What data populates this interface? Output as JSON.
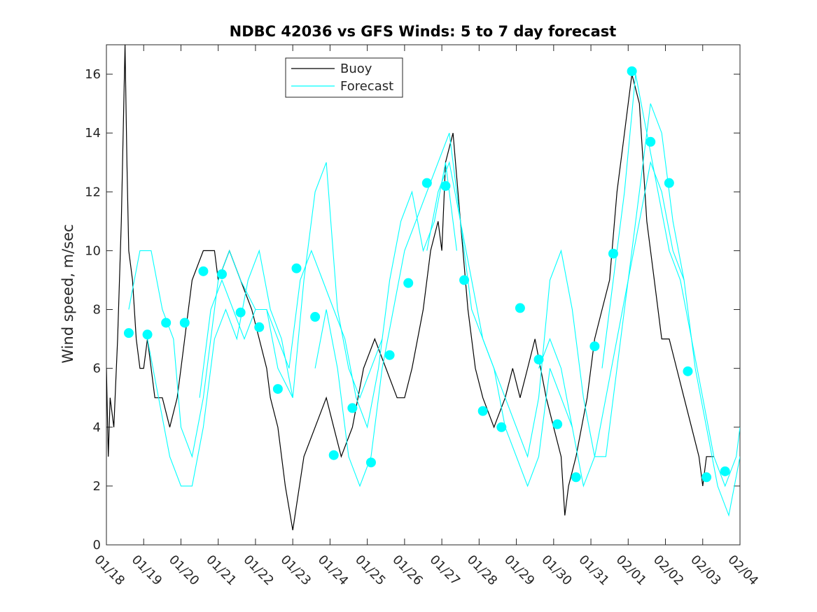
{
  "chart_data": {
    "type": "line",
    "title": "NDBC 42036 vs GFS Winds: 5 to 7 day forecast",
    "xlabel": "",
    "ylabel": "Wind speed, m/sec",
    "xlim": [
      0,
      17
    ],
    "ylim": [
      0,
      17
    ],
    "x_ticks": [
      0,
      1,
      2,
      3,
      4,
      5,
      6,
      7,
      8,
      9,
      10,
      11,
      12,
      13,
      14,
      15,
      16,
      17
    ],
    "x_tick_labels": [
      "01/18",
      "01/19",
      "01/20",
      "01/21",
      "01/22",
      "01/23",
      "01/24",
      "01/25",
      "01/26",
      "01/27",
      "01/28",
      "01/29",
      "01/30",
      "01/31",
      "02/01",
      "02/02",
      "02/03",
      "02/04"
    ],
    "y_ticks": [
      0,
      2,
      4,
      6,
      8,
      10,
      12,
      14,
      16
    ],
    "y_tick_labels": [
      "0",
      "2",
      "4",
      "6",
      "8",
      "10",
      "12",
      "14",
      "16"
    ],
    "legend": {
      "location": "top-center",
      "entries": [
        {
          "label": "Buoy",
          "color": "#000000"
        },
        {
          "label": "Forecast",
          "color": "#00ffff"
        }
      ]
    },
    "colors": {
      "buoy": "#000000",
      "forecast": "#00ffff",
      "markers": "#00ffff"
    },
    "series": [
      {
        "name": "Buoy",
        "color": "#000000",
        "x": [
          0,
          0.05,
          0.1,
          0.2,
          0.3,
          0.4,
          0.5,
          0.55,
          0.6,
          0.7,
          0.8,
          0.9,
          1.0,
          1.1,
          1.2,
          1.3,
          1.5,
          1.7,
          1.9,
          2.0,
          2.1,
          2.3,
          2.6,
          2.9,
          3.0,
          3.3,
          3.6,
          3.9,
          4.1,
          4.3,
          4.4,
          4.6,
          4.8,
          5.0,
          5.3,
          5.6,
          5.9,
          6.1,
          6.3,
          6.6,
          6.9,
          7.2,
          7.5,
          7.8,
          8.0,
          8.2,
          8.5,
          8.7,
          8.9,
          9.0,
          9.1,
          9.3,
          9.5,
          9.7,
          9.9,
          10.1,
          10.4,
          10.7,
          10.9,
          11.1,
          11.3,
          11.5,
          11.8,
          12.0,
          12.2,
          12.3,
          12.4,
          12.6,
          12.9,
          13.1,
          13.3,
          13.5,
          13.7,
          13.9,
          14.1,
          14.3,
          14.5,
          14.7,
          14.9,
          15.1,
          15.3,
          15.5,
          15.7,
          15.9,
          16.0,
          16.1,
          16.2,
          16.3
        ],
        "y": [
          6,
          3,
          5,
          4,
          7,
          11,
          17,
          13,
          10,
          9,
          7,
          6,
          6,
          7,
          6,
          5,
          5,
          4,
          5,
          6,
          7,
          9,
          10,
          10,
          9,
          10,
          9,
          8,
          7,
          6,
          5,
          4,
          2,
          0.5,
          3,
          4,
          5,
          4,
          3,
          4,
          6,
          7,
          6,
          5,
          5,
          6,
          8,
          10,
          11,
          10,
          13,
          14,
          11,
          8,
          6,
          5,
          4,
          5,
          6,
          5,
          6,
          7,
          5,
          4,
          3,
          1,
          2,
          3,
          5,
          7,
          8,
          9,
          12,
          14,
          16,
          15,
          11,
          9,
          7,
          7,
          6,
          5,
          4,
          3,
          2,
          3,
          3,
          3
        ]
      },
      {
        "name": "Forecast 1",
        "color": "#00ffff",
        "x": [
          0.6,
          0.9,
          1.2,
          1.5,
          1.8,
          2.0,
          2.3,
          2.6,
          3.0,
          3.3,
          3.6,
          4.0,
          4.3,
          4.6,
          5.0
        ],
        "y": [
          8,
          10,
          10,
          8,
          7,
          4,
          3,
          5,
          9,
          10,
          9,
          8,
          8,
          6,
          5
        ]
      },
      {
        "name": "Forecast 2",
        "color": "#00ffff",
        "x": [
          1.1,
          1.4,
          1.7,
          2.0,
          2.3,
          2.6,
          2.9,
          3.2,
          3.5,
          3.8,
          4.1,
          4.4,
          4.7,
          5.0,
          5.3,
          5.6,
          5.9,
          6.2,
          6.5,
          6.8,
          7.1,
          7.4
        ],
        "y": [
          7,
          5,
          3,
          2,
          2,
          4,
          7,
          8,
          7,
          9,
          10,
          8,
          7,
          5,
          9,
          12,
          13,
          8,
          6,
          5,
          6,
          7
        ]
      },
      {
        "name": "Forecast 3",
        "color": "#00ffff",
        "x": [
          2.5,
          2.8,
          3.1,
          3.4,
          3.7,
          4.0,
          4.3,
          4.6,
          4.9,
          5.2,
          5.5,
          5.8,
          6.1,
          6.4,
          6.7,
          7.0,
          7.3,
          7.6,
          7.9,
          8.2,
          8.5,
          8.8,
          9.1,
          9.4
        ],
        "y": [
          5,
          8,
          9,
          8,
          7,
          8,
          8,
          7,
          6,
          9,
          10,
          9,
          8,
          7,
          5,
          4,
          6,
          9,
          11,
          12,
          10,
          11,
          13,
          10
        ]
      },
      {
        "name": "Forecast 4",
        "color": "#00ffff",
        "x": [
          5.6,
          5.9,
          6.2,
          6.5,
          6.8,
          7.1,
          7.4,
          7.7,
          8.0,
          8.3,
          8.6,
          8.9,
          9.2,
          9.5,
          9.8,
          10.1,
          10.4,
          10.7,
          11.0,
          11.3,
          11.6,
          11.9,
          12.2,
          12.5
        ],
        "y": [
          6,
          8,
          6,
          3,
          2,
          3,
          6,
          8,
          10,
          11,
          12,
          13,
          14,
          11,
          8,
          7,
          6,
          4,
          3,
          2,
          3,
          6,
          5,
          4
        ]
      },
      {
        "name": "Forecast 5",
        "color": "#00ffff",
        "x": [
          8.6,
          8.9,
          9.2,
          9.5,
          9.8,
          10.1,
          10.4,
          10.7,
          11.0,
          11.3,
          11.6,
          11.9,
          12.2,
          12.5,
          12.8,
          13.1,
          13.4,
          13.7,
          14.0,
          14.3,
          14.6,
          14.9,
          15.2,
          15.5
        ],
        "y": [
          10,
          12,
          13,
          11,
          9,
          7,
          6,
          5,
          4,
          3,
          5,
          9,
          10,
          8,
          5,
          3,
          3,
          6,
          9,
          12,
          15,
          14,
          11,
          9
        ]
      },
      {
        "name": "Forecast 6",
        "color": "#00ffff",
        "x": [
          11.6,
          11.9,
          12.2,
          12.5,
          12.8,
          13.1,
          13.4,
          13.7,
          14.0,
          14.3,
          14.6,
          14.9,
          15.2,
          15.5,
          15.8,
          16.1,
          16.4,
          16.7,
          17.0
        ],
        "y": [
          6,
          7,
          6,
          4,
          2,
          3,
          5,
          7,
          9,
          11,
          13,
          12,
          10,
          9,
          6,
          4,
          2,
          1,
          3
        ]
      },
      {
        "name": "Forecast 7",
        "color": "#00ffff",
        "x": [
          13.3,
          13.6,
          13.9,
          14.2,
          14.5,
          14.8,
          15.1,
          15.4,
          15.7,
          16.0,
          16.3,
          16.6,
          16.9,
          17.0
        ],
        "y": [
          6,
          9,
          12,
          16,
          14,
          12,
          10,
          9,
          7,
          5,
          3,
          2,
          3,
          4
        ]
      }
    ],
    "markers": {
      "color": "#00ffff",
      "x": [
        0.6,
        1.1,
        1.6,
        2.1,
        2.6,
        3.1,
        3.6,
        4.1,
        4.6,
        5.1,
        5.6,
        6.1,
        6.6,
        7.1,
        7.6,
        8.1,
        8.6,
        9.1,
        9.6,
        10.1,
        10.6,
        11.1,
        11.6,
        12.1,
        12.6,
        13.1,
        13.6,
        14.1,
        14.6,
        15.1,
        15.6,
        16.1,
        16.6
      ],
      "y": [
        7.2,
        7.15,
        7.55,
        7.55,
        9.3,
        9.2,
        7.9,
        7.4,
        5.3,
        9.4,
        7.75,
        3.05,
        4.65,
        2.8,
        6.45,
        8.9,
        12.3,
        12.2,
        9.0,
        4.55,
        4.0,
        8.05,
        6.3,
        4.1,
        2.3,
        6.75,
        9.9,
        16.1,
        13.7,
        12.3,
        5.9,
        2.3,
        2.5
      ]
    }
  }
}
